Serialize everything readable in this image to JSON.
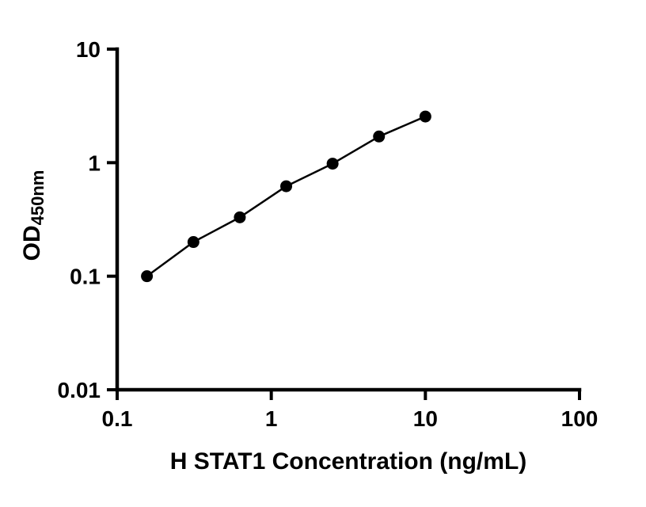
{
  "chart_data": {
    "type": "scatter",
    "x": [
      0.156,
      0.3125,
      0.625,
      1.25,
      2.5,
      5,
      10
    ],
    "y": [
      0.1,
      0.2,
      0.33,
      0.62,
      0.98,
      1.7,
      2.55
    ],
    "title": "",
    "xlabel": "H STAT1 Concentration (ng/mL)",
    "ylabel": "OD",
    "ylabel_subscript": "450nm",
    "xscale": "log",
    "yscale": "log",
    "xlim": [
      0.1,
      100
    ],
    "ylim": [
      0.01,
      10
    ],
    "xticks": [
      0.1,
      1,
      10,
      100
    ],
    "yticks": [
      0.01,
      0.1,
      1,
      10
    ],
    "xtick_labels": [
      "0.1",
      "1",
      "10",
      "100"
    ],
    "ytick_labels": [
      "0.01",
      "0.1",
      "1",
      "10"
    ],
    "grid": false,
    "legend": false,
    "marker_style": "filled-circle",
    "marker_color": "#000000",
    "line_color": "#000000",
    "axis_color": "#000000",
    "text_color": "#000000",
    "background_color": "#ffffff"
  }
}
